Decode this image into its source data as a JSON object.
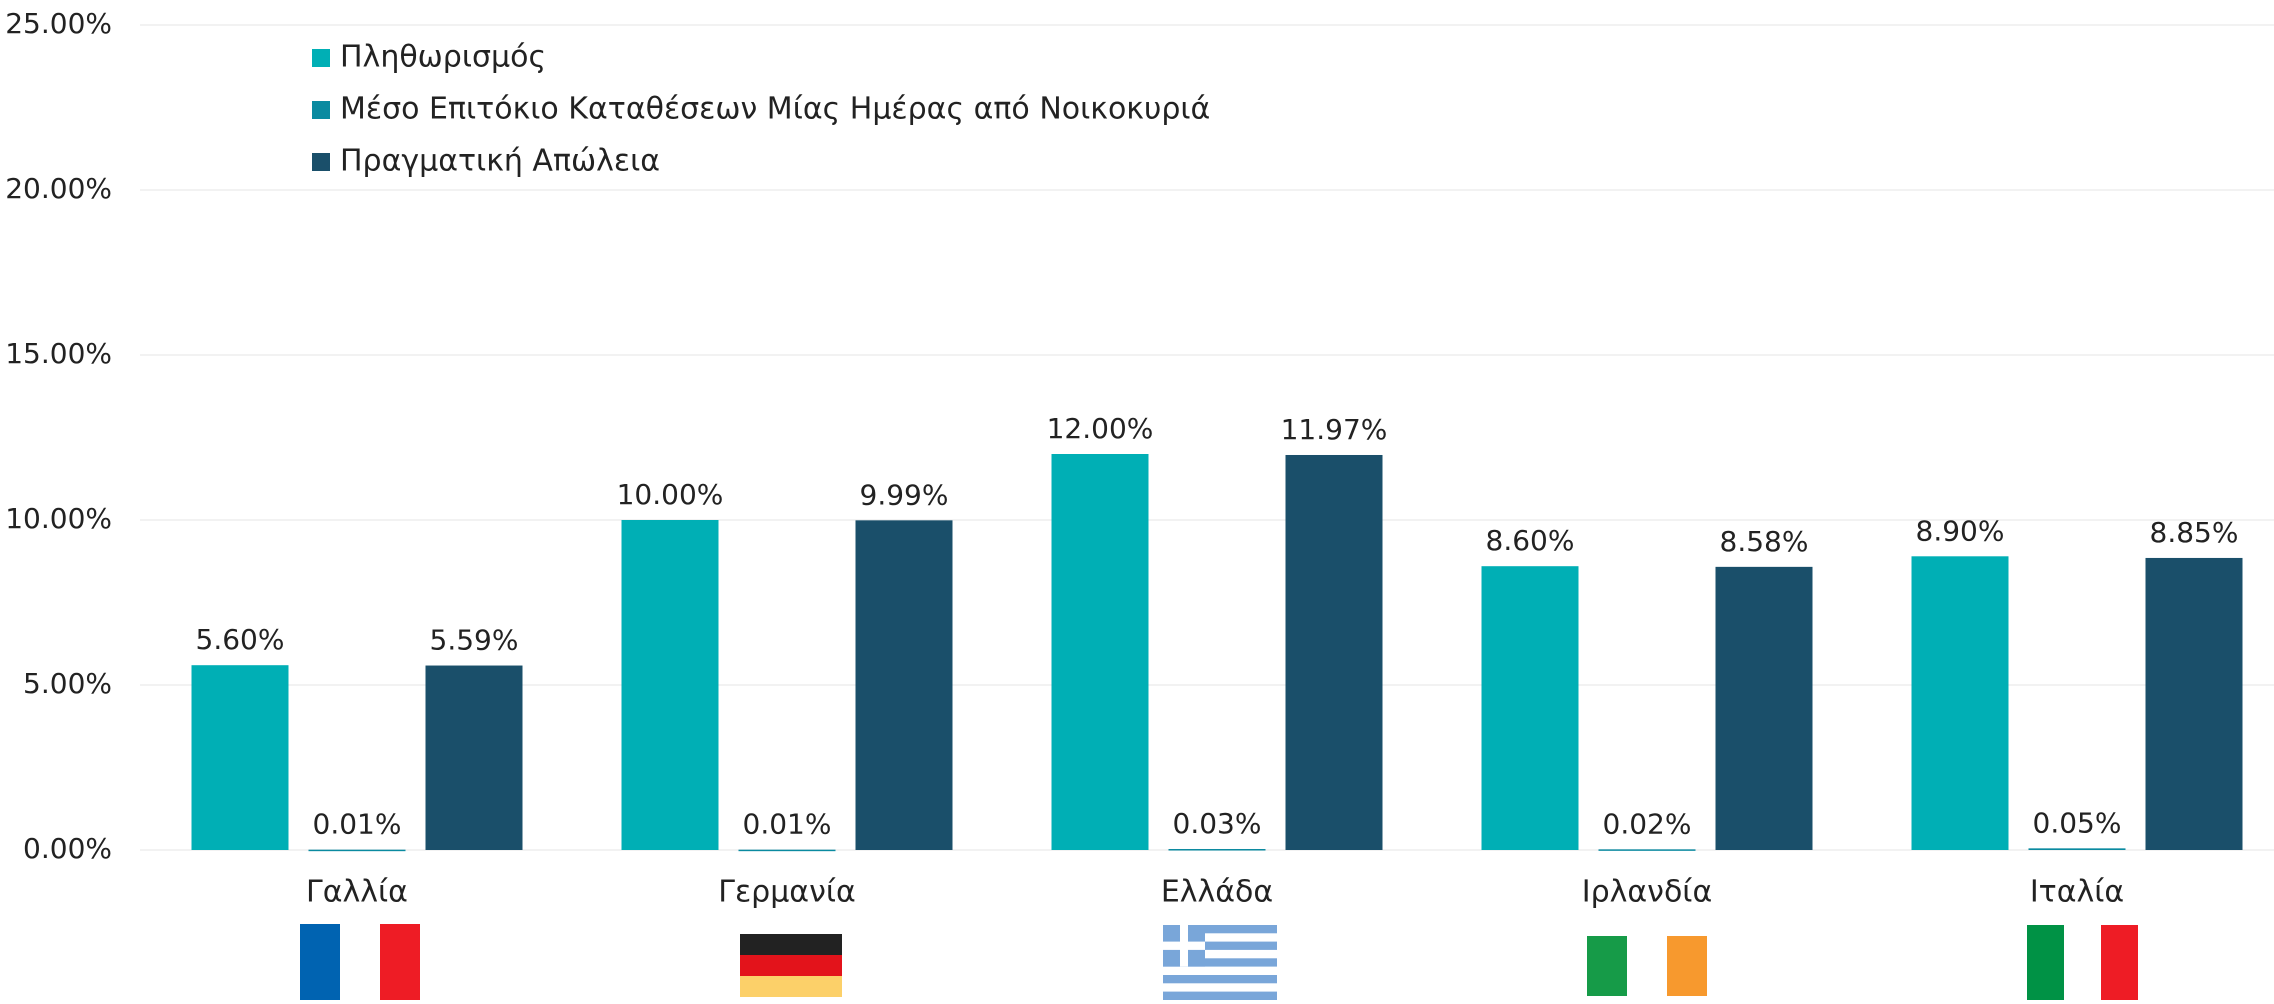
{
  "chart_data": {
    "type": "bar",
    "categories": [
      "Γαλλία",
      "Γερμανία",
      "Ελλάδα",
      "Ιρλανδία",
      "Ιταλία"
    ],
    "series": [
      {
        "name": "Πληθωρισμός",
        "color": "#00afb5",
        "values": [
          5.6,
          10.0,
          12.0,
          8.6,
          8.9
        ],
        "value_labels": [
          "5.60%",
          "10.00%",
          "12.00%",
          "8.60%",
          "8.90%"
        ]
      },
      {
        "name": "Μέσο Επιτόκιο Καταθέσεων Μίας Ημέρας από Νοικοκυριά",
        "color": "#0a8aa0",
        "values": [
          0.01,
          0.01,
          0.03,
          0.02,
          0.05
        ],
        "value_labels": [
          "0.01%",
          "0.01%",
          "0.03%",
          "0.02%",
          "0.05%"
        ]
      },
      {
        "name": "Πραγματική Απώλεια",
        "color": "#1a4f6a",
        "values": [
          5.59,
          9.99,
          11.97,
          8.58,
          8.85
        ],
        "value_labels": [
          "5.59%",
          "9.99%",
          "11.97%",
          "8.58%",
          "8.85%"
        ]
      }
    ],
    "ylim": [
      0,
      25
    ],
    "yticks": [
      {
        "value": 0,
        "label": "0.00%"
      },
      {
        "value": 5,
        "label": "5.00%"
      },
      {
        "value": 10,
        "label": "10.00%"
      },
      {
        "value": 15,
        "label": "15.00%"
      },
      {
        "value": 20,
        "label": "20.00%"
      },
      {
        "value": 25,
        "label": "25.00%"
      }
    ],
    "grid": true,
    "legend": "top-left"
  }
}
